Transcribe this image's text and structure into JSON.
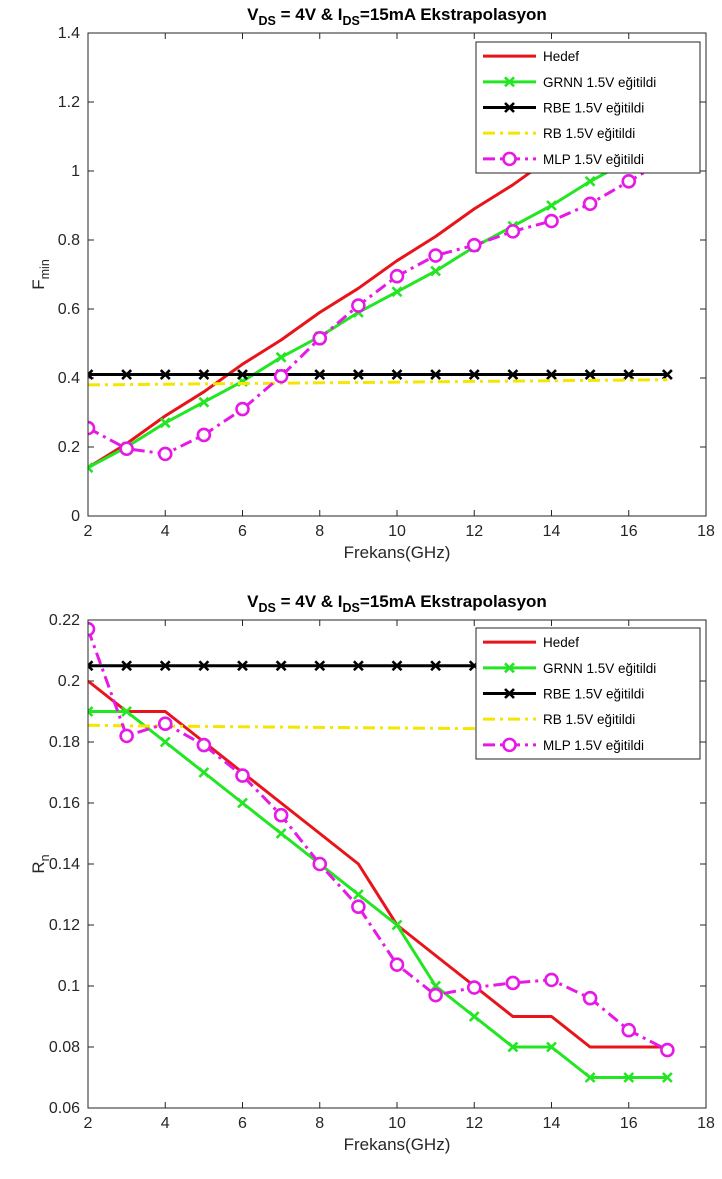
{
  "chart_data": [
    {
      "type": "line",
      "title": {
        "pre": "V",
        "sub1": "DS",
        "mid": " = 4V & I",
        "sub2": "DS",
        "post": "=15mA Ekstrapolasyon"
      },
      "xlabel": "Frekans(GHz)",
      "ylabel": {
        "main": "F",
        "sub": "min"
      },
      "xlim": [
        2,
        18
      ],
      "ylim": [
        0,
        1.4
      ],
      "xticks": [
        2,
        4,
        6,
        8,
        10,
        12,
        14,
        16,
        18
      ],
      "xtick_labels": [
        "2",
        "4",
        "6",
        "8",
        "10",
        "12",
        "14",
        "16",
        "18"
      ],
      "yticks": [
        0,
        0.2,
        0.4,
        0.6,
        0.8,
        1.0,
        1.2,
        1.4
      ],
      "ytick_labels": [
        "0",
        "0.2",
        "0.4",
        "0.6",
        "0.8",
        "1",
        "1.2",
        "1.4"
      ],
      "legend_position": "top-right",
      "grid": false,
      "x": [
        2,
        3,
        4,
        5,
        6,
        7,
        8,
        9,
        10,
        11,
        12,
        13,
        14,
        15,
        16,
        17
      ],
      "series": [
        {
          "name": "Hedef",
          "color": "#e8141a",
          "dash": "",
          "marker": "none",
          "width": 3,
          "values": [
            0.14,
            0.21,
            0.29,
            0.36,
            0.44,
            0.51,
            0.59,
            0.66,
            0.74,
            0.81,
            0.89,
            0.96,
            1.04,
            1.11,
            1.18,
            1.25
          ]
        },
        {
          "name": "GRNN 1.5V eğitildi",
          "color": "#22e622",
          "dash": "",
          "marker": "x",
          "width": 3,
          "values": [
            0.14,
            0.2,
            0.27,
            0.33,
            0.39,
            0.46,
            0.52,
            0.59,
            0.65,
            0.71,
            0.78,
            0.84,
            0.9,
            0.97,
            1.03,
            1.09
          ]
        },
        {
          "name": "RBE 1.5V eğitildi",
          "color": "#000000",
          "dash": "",
          "marker": "x",
          "width": 3,
          "values": [
            0.41,
            0.41,
            0.41,
            0.41,
            0.41,
            0.41,
            0.41,
            0.41,
            0.41,
            0.41,
            0.41,
            0.41,
            0.41,
            0.41,
            0.41,
            0.41
          ]
        },
        {
          "name": "RB 1.5V eğitildi",
          "color": "#f5e600",
          "dash": "12 5 3 5",
          "marker": "none",
          "width": 3,
          "values": [
            0.38,
            0.381,
            0.382,
            0.383,
            0.384,
            0.385,
            0.386,
            0.387,
            0.388,
            0.389,
            0.39,
            0.391,
            0.392,
            0.393,
            0.394,
            0.395
          ]
        },
        {
          "name": "MLP 1.5V eğitildi",
          "color": "#e619e6",
          "dash": "12 5 3 5",
          "marker": "o",
          "width": 3,
          "values": [
            0.255,
            0.195,
            0.18,
            0.235,
            0.31,
            0.405,
            0.515,
            0.61,
            0.695,
            0.755,
            0.785,
            0.825,
            0.855,
            0.905,
            0.97,
            1.035
          ]
        }
      ]
    },
    {
      "type": "line",
      "title": {
        "pre": "V",
        "sub1": "DS",
        "mid": " = 4V & I",
        "sub2": "DS",
        "post": "=15mA Ekstrapolasyon"
      },
      "xlabel": "Frekans(GHz)",
      "ylabel": {
        "main": "R",
        "sub": "n"
      },
      "xlim": [
        2,
        18
      ],
      "ylim": [
        0.06,
        0.22
      ],
      "xticks": [
        2,
        4,
        6,
        8,
        10,
        12,
        14,
        16,
        18
      ],
      "xtick_labels": [
        "2",
        "4",
        "6",
        "8",
        "10",
        "12",
        "14",
        "16",
        "18"
      ],
      "yticks": [
        0.06,
        0.08,
        0.1,
        0.12,
        0.14,
        0.16,
        0.18,
        0.2,
        0.22
      ],
      "ytick_labels": [
        "0.06",
        "0.08",
        "0.1",
        "0.12",
        "0.14",
        "0.16",
        "0.18",
        "0.2",
        "0.22"
      ],
      "legend_position": "top-right",
      "grid": false,
      "x": [
        2,
        3,
        4,
        5,
        6,
        7,
        8,
        9,
        10,
        11,
        12,
        13,
        14,
        15,
        16,
        17
      ],
      "series": [
        {
          "name": "Hedef",
          "color": "#e8141a",
          "dash": "",
          "marker": "none",
          "width": 3,
          "values": [
            0.2,
            0.19,
            0.19,
            0.18,
            0.17,
            0.16,
            0.15,
            0.14,
            0.12,
            0.11,
            0.1,
            0.09,
            0.09,
            0.08,
            0.08,
            0.08
          ]
        },
        {
          "name": "GRNN 1.5V eğitildi",
          "color": "#22e622",
          "dash": "",
          "marker": "x",
          "width": 3,
          "values": [
            0.19,
            0.19,
            0.18,
            0.17,
            0.16,
            0.15,
            0.14,
            0.13,
            0.12,
            0.1,
            0.09,
            0.08,
            0.08,
            0.07,
            0.07,
            0.07
          ]
        },
        {
          "name": "RBE 1.5V eğitildi",
          "color": "#000000",
          "dash": "",
          "marker": "x",
          "width": 3,
          "values": [
            0.205,
            0.205,
            0.205,
            0.205,
            0.205,
            0.205,
            0.205,
            0.205,
            0.205,
            0.205,
            0.205,
            0.205,
            0.205,
            0.205,
            0.205,
            0.205
          ]
        },
        {
          "name": "RB 1.5V eğitildi",
          "color": "#f5e600",
          "dash": "12 5 3 5",
          "marker": "none",
          "width": 3,
          "values": [
            0.1855,
            0.1853,
            0.1852,
            0.1851,
            0.185,
            0.1849,
            0.1848,
            0.1847,
            0.1846,
            0.1845,
            0.1844,
            0.1843,
            0.1842,
            0.1841,
            0.184,
            0.1839
          ]
        },
        {
          "name": "MLP 1.5V eğitildi",
          "color": "#e619e6",
          "dash": "12 5 3 5",
          "marker": "o",
          "width": 3,
          "values": [
            0.217,
            0.182,
            0.186,
            0.179,
            0.169,
            0.156,
            0.14,
            0.126,
            0.107,
            0.097,
            0.0995,
            0.101,
            0.102,
            0.096,
            0.0855,
            0.079
          ]
        }
      ]
    }
  ]
}
